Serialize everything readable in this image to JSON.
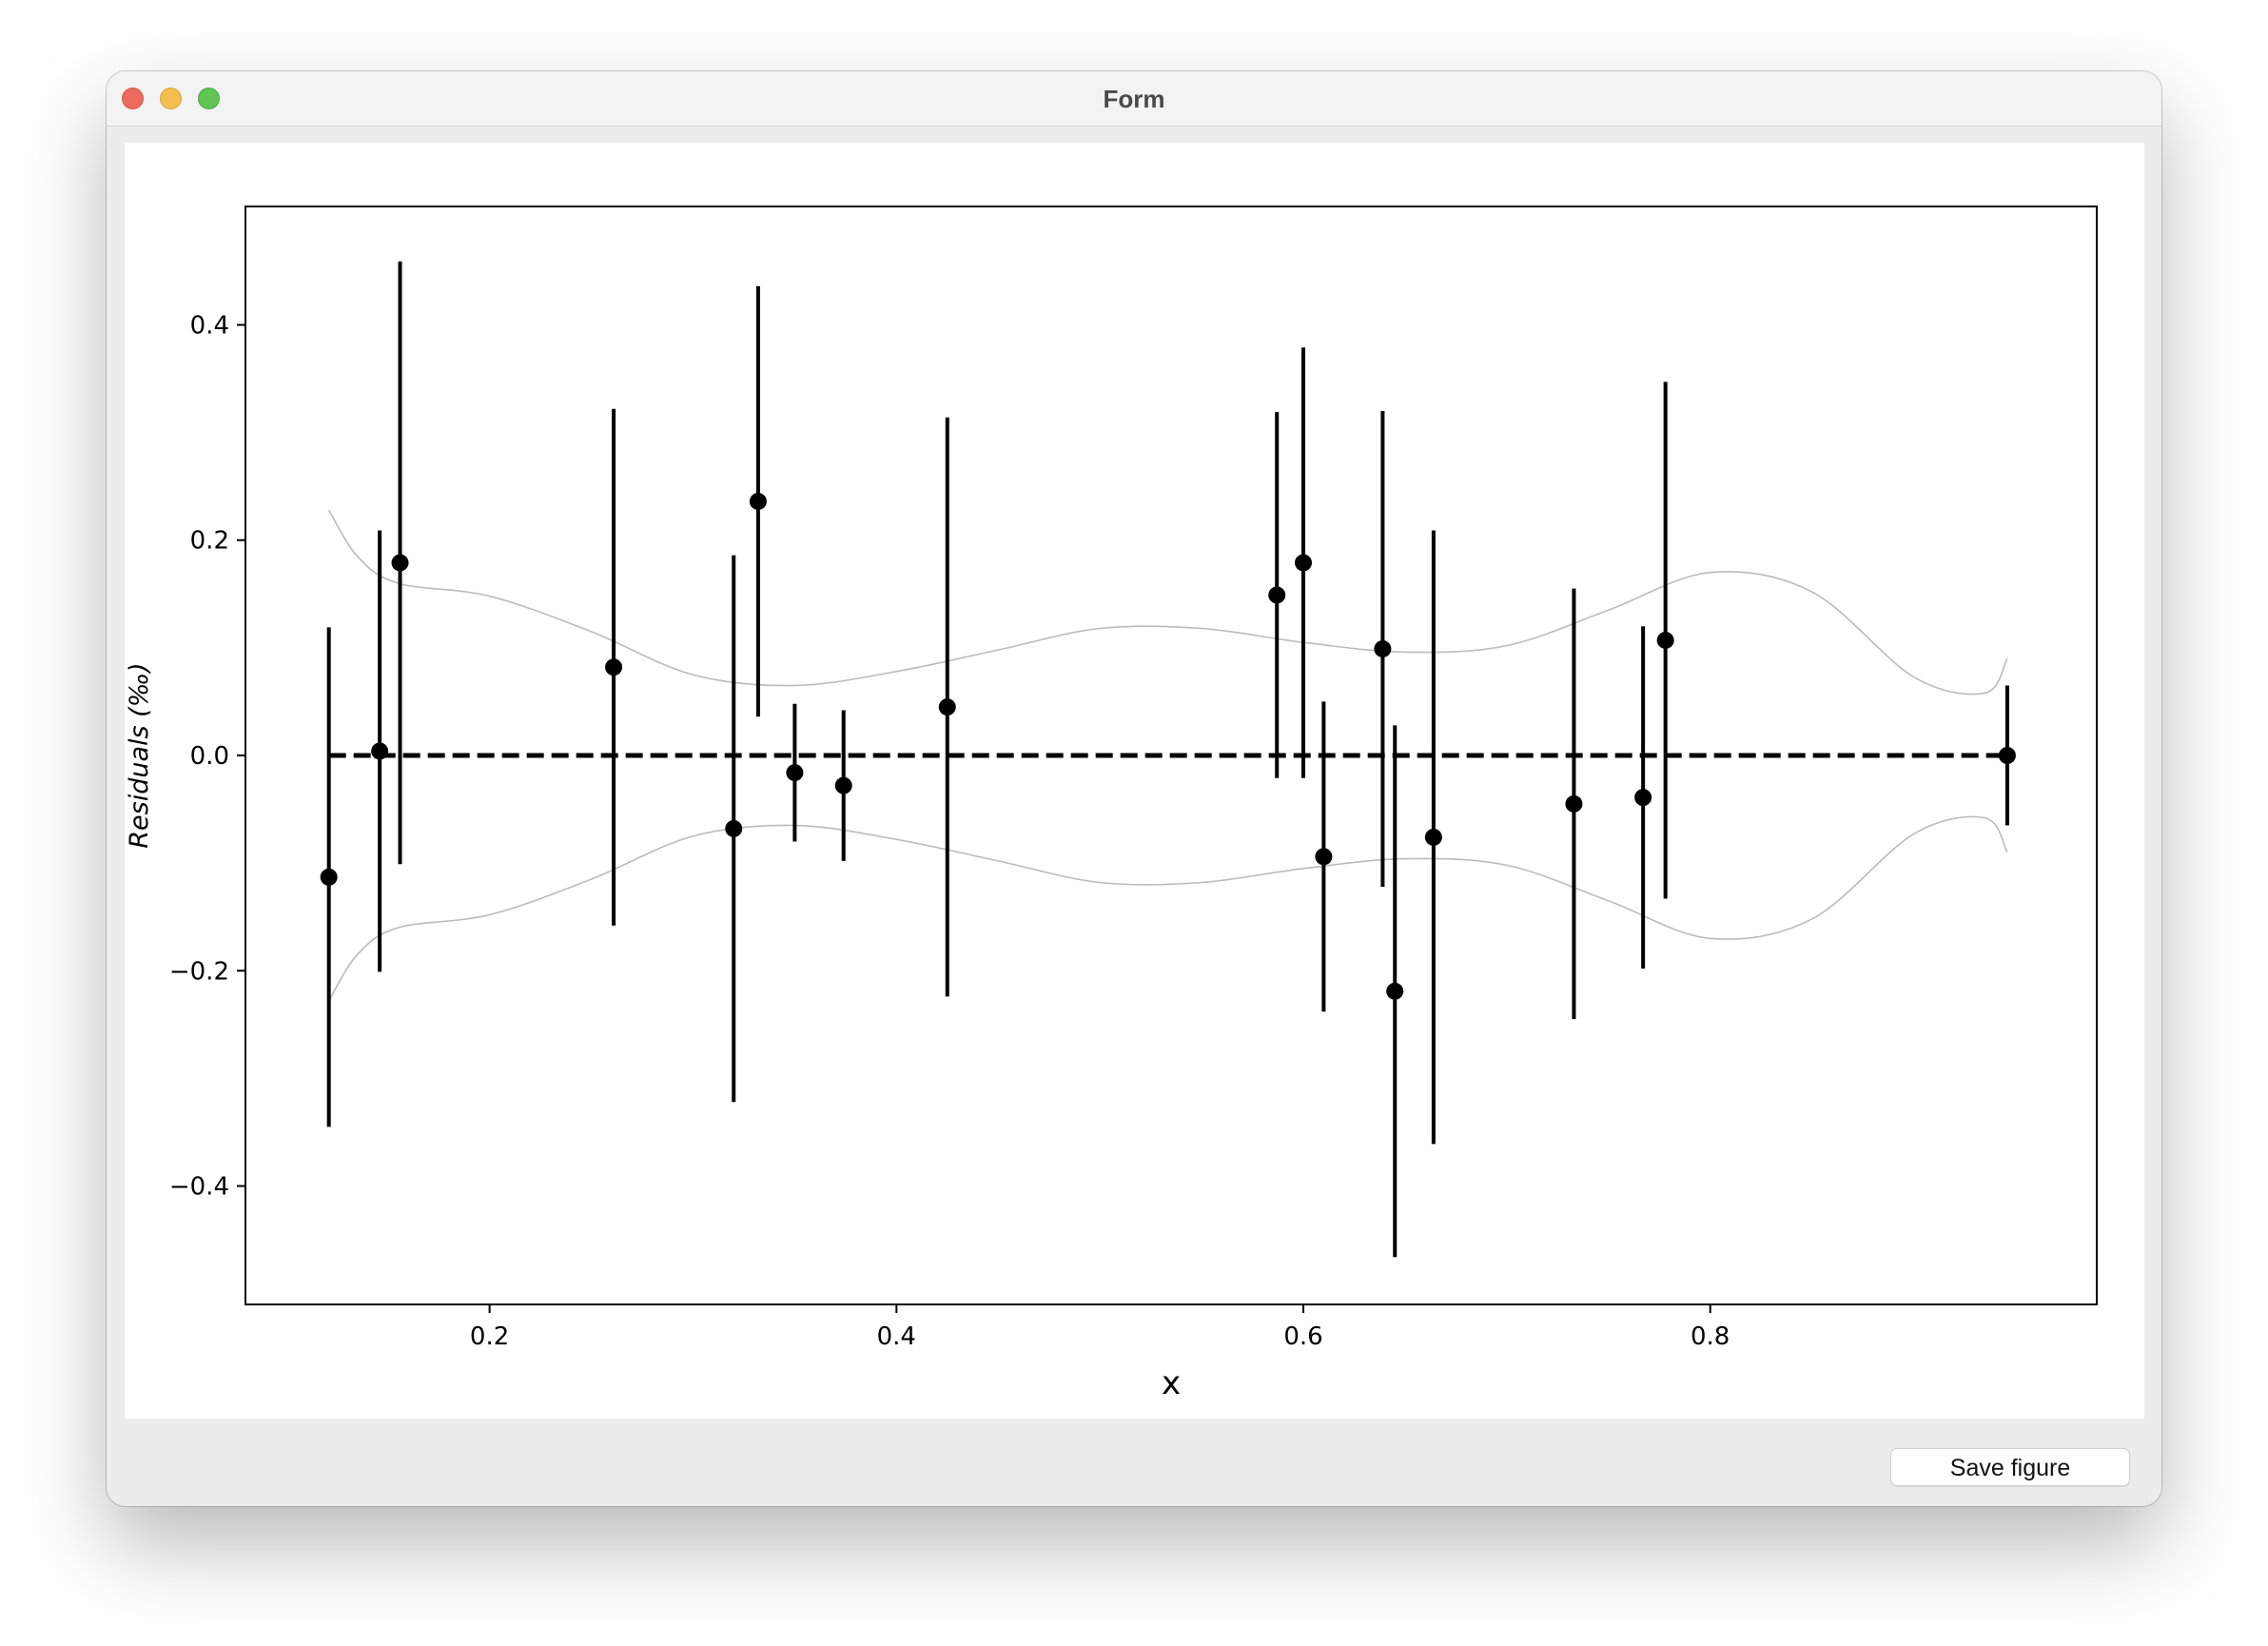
{
  "window": {
    "title": "Form"
  },
  "toolbar": {
    "save_label": "Save figure"
  },
  "chart_data": {
    "type": "scatter",
    "title": "",
    "xlabel": "x",
    "ylabel": "Residuals (‰)",
    "xlim": [
      0.08,
      0.99
    ],
    "ylim": [
      -0.51,
      0.51
    ],
    "xticks": [
      0.2,
      0.4,
      0.6,
      0.8
    ],
    "xtick_labels": [
      "0.2",
      "0.4",
      "0.6",
      "0.8"
    ],
    "yticks": [
      -0.4,
      -0.2,
      0.0,
      0.2,
      0.4
    ],
    "ytick_labels": [
      "−0.4",
      "−0.2",
      "0.0",
      "0.2",
      "0.4"
    ],
    "grid": false,
    "reference_line": {
      "y": 0.0,
      "x_range": [
        0.121,
        0.946
      ],
      "style": "dashed",
      "color": "#000000"
    },
    "points": [
      {
        "x": 0.121,
        "y": -0.113,
        "err": 0.232
      },
      {
        "x": 0.146,
        "y": 0.004,
        "err": 0.205
      },
      {
        "x": 0.156,
        "y": 0.179,
        "err": 0.28
      },
      {
        "x": 0.261,
        "y": 0.082,
        "err": 0.24
      },
      {
        "x": 0.32,
        "y": -0.068,
        "err": 0.254
      },
      {
        "x": 0.332,
        "y": 0.236,
        "err": 0.2
      },
      {
        "x": 0.35,
        "y": -0.016,
        "err": 0.064
      },
      {
        "x": 0.374,
        "y": -0.028,
        "err": 0.07
      },
      {
        "x": 0.425,
        "y": 0.045,
        "err": 0.269
      },
      {
        "x": 0.587,
        "y": 0.149,
        "err": 0.17
      },
      {
        "x": 0.6,
        "y": 0.179,
        "err": 0.2
      },
      {
        "x": 0.61,
        "y": -0.094,
        "err": 0.144
      },
      {
        "x": 0.639,
        "y": 0.099,
        "err": 0.221
      },
      {
        "x": 0.645,
        "y": -0.219,
        "err": 0.247
      },
      {
        "x": 0.664,
        "y": -0.076,
        "err": 0.285
      },
      {
        "x": 0.733,
        "y": -0.045,
        "err": 0.2
      },
      {
        "x": 0.767,
        "y": -0.039,
        "err": 0.159
      },
      {
        "x": 0.778,
        "y": 0.107,
        "err": 0.24
      },
      {
        "x": 0.946,
        "y": 0.0,
        "err": 0.065
      }
    ],
    "envelope": {
      "color": "#bbbbbb",
      "x": [
        0.121,
        0.135,
        0.155,
        0.2,
        0.25,
        0.3,
        0.35,
        0.4,
        0.45,
        0.5,
        0.55,
        0.6,
        0.65,
        0.7,
        0.75,
        0.8,
        0.85,
        0.9,
        0.935,
        0.946
      ],
      "y": [
        0.228,
        0.185,
        0.16,
        0.148,
        0.115,
        0.075,
        0.065,
        0.078,
        0.098,
        0.118,
        0.118,
        0.105,
        0.096,
        0.102,
        0.135,
        0.17,
        0.152,
        0.073,
        0.058,
        0.09
      ]
    },
    "marker_color": "#000000",
    "error_color": "#000000"
  }
}
